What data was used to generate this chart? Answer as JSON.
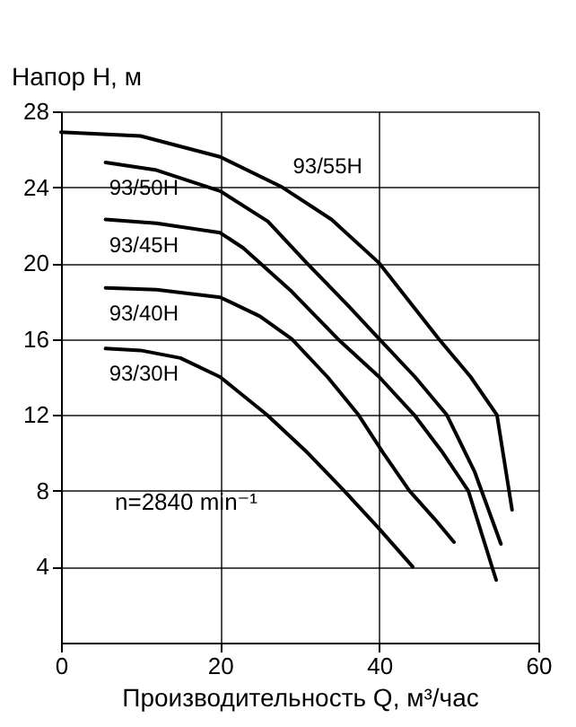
{
  "chart_data": {
    "type": "line",
    "ylabel": "Напор H, м",
    "xlabel": "Производительность Q, м³/час",
    "annotations": [
      "n=2840 min⁻¹"
    ],
    "xlim": [
      0,
      60
    ],
    "xticks": [
      0,
      20,
      40,
      60
    ],
    "ylim": [
      0,
      28
    ],
    "yticks": [
      4,
      8,
      12,
      16,
      20,
      24,
      28
    ],
    "grid": true,
    "line_style": "solid",
    "series": [
      {
        "name": "93/55H",
        "color": "#000000",
        "x": [
          0,
          10,
          20,
          27.8,
          34,
          40,
          47.5,
          51.5,
          54.8,
          56.7
        ],
        "values": [
          26.9,
          26.7,
          25.6,
          24,
          22.3,
          20,
          16,
          14,
          12,
          7.0
        ]
      },
      {
        "name": "93/50H",
        "color": "#000000",
        "x": [
          5.6,
          12,
          20,
          26,
          30.9,
          36,
          40,
          44.5,
          48.5,
          52,
          55.3
        ],
        "values": [
          25.3,
          24.9,
          23.8,
          22.2,
          20,
          17.8,
          16,
          14,
          12,
          9,
          5.2
        ]
      },
      {
        "name": "93/45H",
        "color": "#000000",
        "x": [
          5.6,
          12,
          20,
          22.9,
          29,
          34.8,
          40,
          44.4,
          48,
          51.2,
          54.7
        ],
        "values": [
          22.3,
          22.1,
          21.6,
          20.8,
          18.5,
          16,
          14,
          12,
          10,
          8,
          3.3
        ]
      },
      {
        "name": "93/40H",
        "color": "#000000",
        "x": [
          5.6,
          12,
          20,
          25,
          29,
          33.5,
          37.4,
          40.5,
          43.8,
          47,
          49.4
        ],
        "values": [
          18.7,
          18.6,
          18.2,
          17.2,
          16,
          14,
          12,
          10,
          8,
          6.5,
          5.3
        ]
      },
      {
        "name": "93/30H",
        "color": "#000000",
        "x": [
          5.6,
          10,
          15,
          20,
          25.9,
          31,
          35.6,
          40,
          44.2
        ],
        "values": [
          15.5,
          15.4,
          15,
          14,
          12,
          10,
          8,
          6,
          4
        ]
      }
    ]
  }
}
